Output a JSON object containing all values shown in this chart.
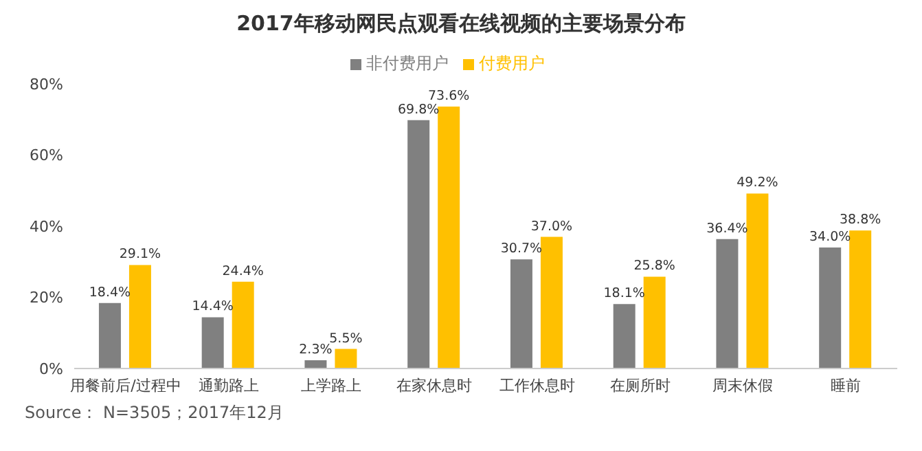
{
  "chart_data": {
    "type": "bar",
    "title": "2017年移动网民点观看在线视频的主要场景分布",
    "categories": [
      "用餐前后/过程中",
      "通勤路上",
      "上学路上",
      "在家休息时",
      "工作休息时",
      "在厕所时",
      "周末休假",
      "睡前"
    ],
    "series": [
      {
        "name": "非付费用户",
        "color": "#808080",
        "values": [
          18.4,
          14.4,
          2.3,
          69.8,
          30.7,
          18.1,
          36.4,
          34.0
        ],
        "value_labels": [
          "18.4%",
          "14.4%",
          "2.3%",
          "69.8%",
          "30.7%",
          "18.1%",
          "36.4%",
          "34.0%"
        ]
      },
      {
        "name": "付费用户",
        "color": "#ffc000",
        "values": [
          29.1,
          24.4,
          5.5,
          73.6,
          37.0,
          25.8,
          49.2,
          38.8
        ],
        "value_labels": [
          "29.1%",
          "24.4%",
          "5.5%",
          "73.6%",
          "37.0%",
          "25.8%",
          "49.2%",
          "38.8%"
        ]
      }
    ],
    "ylim": [
      0,
      80
    ],
    "yticks": [
      {
        "value": 0,
        "label": "0%"
      },
      {
        "value": 20,
        "label": "20%"
      },
      {
        "value": 40,
        "label": "40%"
      },
      {
        "value": 60,
        "label": "60%"
      },
      {
        "value": 80,
        "label": "80%"
      }
    ],
    "grid": false,
    "legend": "top",
    "annotations": [
      "Source： N=3505；2017年12月"
    ]
  }
}
